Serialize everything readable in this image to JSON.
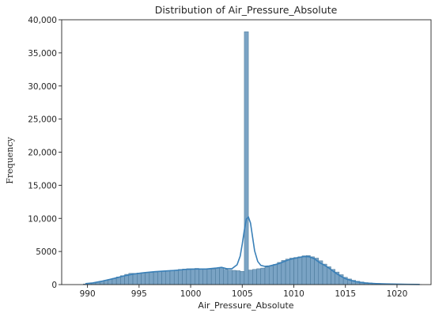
{
  "chart_data": {
    "type": "bar",
    "title": "Distribution of Air_Pressure_Absolute",
    "xlabel": "Air_Pressure_Absolute",
    "ylabel": "Frequency",
    "xlim": [
      987.5,
      1023.3
    ],
    "ylim": [
      0,
      40000
    ],
    "xticks": [
      990,
      995,
      1000,
      1005,
      1010,
      1015,
      1020
    ],
    "xtick_labels": [
      "990",
      "995",
      "1000",
      "1005",
      "1010",
      "1015",
      "1020"
    ],
    "yticks": [
      0,
      5000,
      10000,
      15000,
      20000,
      25000,
      30000,
      35000,
      40000
    ],
    "ytick_labels": [
      "0",
      "5000",
      "10,000",
      "15,000",
      "20,000",
      "25,000",
      "30,000",
      "35,000",
      "40,000"
    ],
    "grid": false,
    "bin_width": 0.4,
    "histogram": {
      "x": [
        989.8,
        990.2,
        990.6,
        991.0,
        991.4,
        991.8,
        992.2,
        992.6,
        993.0,
        993.4,
        993.8,
        994.2,
        994.6,
        995.0,
        995.4,
        995.8,
        996.2,
        996.6,
        997.0,
        997.4,
        997.8,
        998.2,
        998.6,
        999.0,
        999.4,
        999.8,
        1000.2,
        1000.6,
        1001.0,
        1001.4,
        1001.8,
        1002.2,
        1002.6,
        1003.0,
        1003.4,
        1003.8,
        1004.2,
        1004.6,
        1005.0,
        1005.4,
        1005.8,
        1006.2,
        1006.6,
        1007.0,
        1007.4,
        1007.8,
        1008.2,
        1008.6,
        1009.0,
        1009.4,
        1009.8,
        1010.2,
        1010.6,
        1011.0,
        1011.4,
        1011.8,
        1012.2,
        1012.6,
        1013.0,
        1013.4,
        1013.8,
        1014.2,
        1014.6,
        1015.0,
        1015.4,
        1015.8,
        1016.2,
        1016.6,
        1017.0,
        1017.4,
        1017.8,
        1018.2,
        1018.6,
        1019.0,
        1019.4,
        1019.8,
        1020.2,
        1020.6,
        1021.0,
        1021.4,
        1021.8,
        1022.2
      ],
      "values": [
        100,
        150,
        250,
        350,
        500,
        650,
        800,
        950,
        1150,
        1350,
        1550,
        1700,
        1700,
        1750,
        1800,
        1850,
        1850,
        1900,
        1950,
        2050,
        2100,
        2150,
        2200,
        2300,
        2350,
        2400,
        2400,
        2450,
        2400,
        2350,
        2350,
        2350,
        2500,
        2600,
        2300,
        2200,
        2150,
        2100,
        2000,
        38200,
        2200,
        2300,
        2400,
        2500,
        2650,
        2850,
        3050,
        3350,
        3650,
        3850,
        4000,
        4100,
        4200,
        4350,
        4400,
        4200,
        4000,
        3600,
        3100,
        2700,
        2300,
        1900,
        1500,
        1100,
        850,
        650,
        500,
        400,
        300,
        250,
        200,
        170,
        150,
        120,
        100,
        80,
        60,
        50,
        40,
        30,
        20,
        10
      ]
    },
    "kde": {
      "x": [
        989.8,
        990.5,
        991.5,
        992.5,
        993.5,
        994.5,
        995.5,
        996.5,
        997.5,
        998.5,
        999.5,
        1000.5,
        1001.5,
        1002.5,
        1003.0,
        1003.5,
        1004.0,
        1004.5,
        1004.8,
        1005.0,
        1005.2,
        1005.4,
        1005.6,
        1005.8,
        1006.0,
        1006.2,
        1006.5,
        1006.8,
        1007.2,
        1007.6,
        1008.0,
        1008.5,
        1009.0,
        1009.5,
        1010.0,
        1010.5,
        1011.0,
        1011.5,
        1012.0,
        1012.5,
        1013.0,
        1013.5,
        1014.0,
        1014.5,
        1015.0,
        1015.5,
        1016.0,
        1016.5,
        1017.0,
        1018.0,
        1019.0,
        1020.0,
        1021.0,
        1022.2
      ],
      "y": [
        150,
        250,
        550,
        900,
        1300,
        1600,
        1800,
        1950,
        2050,
        2150,
        2300,
        2350,
        2350,
        2500,
        2600,
        2400,
        2400,
        3000,
        4300,
        6100,
        8200,
        9900,
        10200,
        9300,
        7200,
        5100,
        3500,
        2900,
        2750,
        2800,
        2950,
        3150,
        3450,
        3750,
        3950,
        4100,
        4250,
        4200,
        3900,
        3300,
        2900,
        2400,
        1800,
        1300,
        900,
        650,
        450,
        320,
        230,
        150,
        100,
        70,
        40,
        20
      ]
    }
  },
  "colors": {
    "bar_fill": "#7aa3c4",
    "bar_edge": "#3f6f92",
    "kde_line": "#3a80b8",
    "axis": "#262626"
  }
}
